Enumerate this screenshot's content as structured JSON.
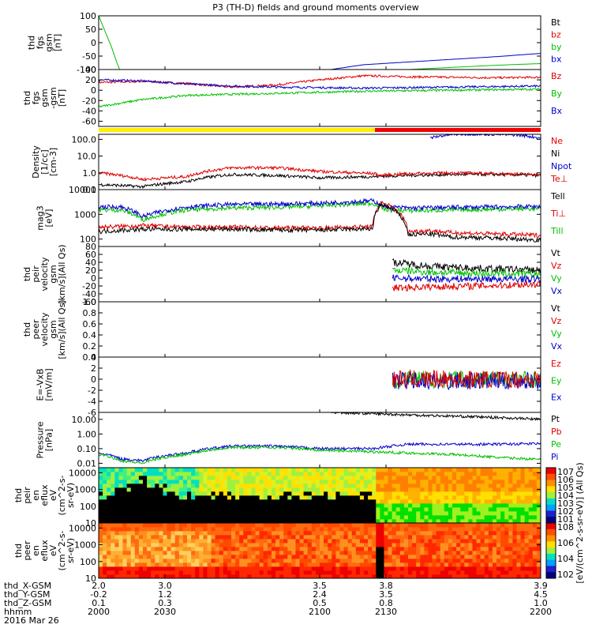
{
  "title": "P3 (TH-D) fields and ground moments overview",
  "footer": {
    "row_labels": [
      "thd_X-GSM",
      "thd_Y-GSM",
      "thd_Z-GSM",
      "hhmm",
      "2016 Mar 26"
    ],
    "x_ticks": [
      [
        "2.0",
        "3.0",
        "3.5",
        "3.8",
        "3.9"
      ],
      [
        "-0.2",
        "1.2",
        "2.4",
        "3.5",
        "4.5"
      ],
      [
        "0.1",
        "0.3",
        "0.5",
        "0.8",
        "1.0"
      ],
      [
        "2000",
        "2030",
        "2100",
        "2130",
        "2200"
      ]
    ]
  },
  "chart_data": [
    {
      "id": "fgs",
      "type": "line",
      "ylabel": [
        "thd",
        "fgs",
        "gsm",
        "[nT]"
      ],
      "ylim": [
        -100,
        100
      ],
      "yticks": [
        "100",
        "50",
        "0",
        "-50",
        "-100"
      ],
      "legend": [
        {
          "name": "Bt",
          "color": "#000000"
        },
        {
          "name": "bz",
          "color": "#e00000"
        },
        {
          "name": "by",
          "color": "#00c000"
        },
        {
          "name": "bx",
          "color": "#0000cc"
        }
      ],
      "series": [
        {
          "name": "by",
          "color": "#00c000",
          "x": [
            2000,
            2003,
            2006,
            2008,
            2009.5
          ],
          "y": [
            100,
            40,
            -20,
            -70,
            -100
          ]
        },
        {
          "name": "bx",
          "color": "#0000cc",
          "x": [
            2105,
            2120,
            2140,
            2160,
            2180,
            2200
          ],
          "y": [
            -100,
            -82,
            -72,
            -62,
            -52,
            -40
          ]
        },
        {
          "name": "by2",
          "color": "#00c000",
          "x": [
            2140,
            2160,
            2180,
            2200
          ],
          "y": [
            -100,
            -92,
            -84,
            -78
          ]
        }
      ]
    },
    {
      "id": "fgs_low",
      "type": "line",
      "ylabel": [
        "thd",
        "fgs",
        "gsm",
        "-gsm",
        "[nT]"
      ],
      "ylim": [
        -70,
        40
      ],
      "yticks": [
        "40",
        "20",
        "0",
        "-20",
        "-40",
        "-60"
      ],
      "legend": [
        {
          "name": "Bz",
          "color": "#e00000"
        },
        {
          "name": "By",
          "color": "#00c000"
        },
        {
          "name": "Bx",
          "color": "#0000cc"
        }
      ],
      "series": [
        {
          "name": "Bz",
          "color": "#e00000",
          "x": [
            2000,
            2020,
            2040,
            2060,
            2080,
            2100,
            2120,
            2140,
            2160,
            2180,
            2200
          ],
          "y": [
            15,
            17,
            13,
            6,
            10,
            20,
            28,
            26,
            25,
            24,
            25
          ]
        },
        {
          "name": "Bx",
          "color": "#0000cc",
          "x": [
            2000,
            2020,
            2040,
            2060,
            2080,
            2100,
            2120,
            2140,
            2160,
            2180,
            2200
          ],
          "y": [
            20,
            18,
            12,
            8,
            6,
            5,
            4,
            5,
            6,
            7,
            8
          ]
        },
        {
          "name": "By",
          "color": "#00c000",
          "x": [
            2000,
            2020,
            2040,
            2060,
            2080,
            2100,
            2120,
            2140,
            2160,
            2180,
            2200
          ],
          "y": [
            -32,
            -18,
            -10,
            -8,
            -6,
            -4,
            -2,
            -1,
            0,
            1,
            2
          ]
        }
      ]
    },
    {
      "id": "density",
      "type": "line",
      "scale": "log",
      "ylabel": [
        "Density",
        "[1/cc]",
        "[cm-3]"
      ],
      "ylim": [
        0.1,
        200
      ],
      "yticks": [
        "100.0",
        "10.0",
        "1.0",
        "0.1"
      ],
      "legend": [
        {
          "name": "Ne",
          "color": "#e00000"
        },
        {
          "name": "Ni",
          "color": "#000000"
        },
        {
          "name": "Npot",
          "color": "#0000cc"
        },
        {
          "name": "Te⊥",
          "color": "#e00000"
        }
      ],
      "series": [
        {
          "name": "Ni",
          "color": "#000000",
          "x": [
            2000,
            2020,
            2040,
            2060,
            2080,
            2100,
            2125,
            2140,
            2160,
            2180,
            2200
          ],
          "y": [
            0.2,
            0.15,
            0.3,
            0.8,
            0.7,
            0.5,
            0.6,
            0.7,
            0.8,
            0.8,
            0.7
          ]
        },
        {
          "name": "Ne",
          "color": "#e00000",
          "x": [
            2000,
            2020,
            2040,
            2060,
            2080,
            2100,
            2125,
            2127,
            2140,
            2160,
            2180,
            2200
          ],
          "y": [
            1.0,
            0.4,
            0.6,
            2.0,
            2.0,
            1.2,
            0.9,
            0.7,
            0.9,
            1.0,
            0.9,
            0.8
          ]
        },
        {
          "name": "Npot",
          "color": "#0000cc",
          "x": [
            2150,
            2160,
            2170,
            2180,
            2190,
            2200
          ],
          "y": [
            120,
            200,
            210,
            200,
            180,
            120
          ]
        }
      ]
    },
    {
      "id": "temperature",
      "type": "line",
      "scale": "log",
      "ylabel": [
        "mag3",
        "[eV]"
      ],
      "ylim": [
        50,
        10000
      ],
      "yticks": [
        "10000",
        "1000",
        "100"
      ],
      "legend": [
        {
          "name": "Tell",
          "color": "#000000"
        },
        {
          "name": "Ti⊥",
          "color": "#e00000"
        },
        {
          "name": "Till",
          "color": "#00c000"
        }
      ],
      "series": [
        {
          "name": "Till",
          "color": "#00c000",
          "x": [
            2000,
            2010,
            2020,
            2040,
            2060,
            2080,
            2100,
            2124,
            2130,
            2140,
            2160,
            2180,
            2200
          ],
          "y": [
            1500,
            1500,
            600,
            1500,
            1800,
            1900,
            2200,
            2800,
            1500,
            1400,
            1500,
            1600,
            1700
          ]
        },
        {
          "name": "Ti_perp",
          "color": "#0000cc",
          "x": [
            2000,
            2010,
            2020,
            2040,
            2060,
            2080,
            2100,
            2124,
            2130,
            2140,
            2160,
            2180,
            2200
          ],
          "y": [
            2000,
            2000,
            800,
            2000,
            2500,
            2600,
            2800,
            3500,
            2000,
            1800,
            1900,
            2000,
            2100
          ]
        },
        {
          "name": "Te_perp",
          "color": "#e00000",
          "x": [
            2000,
            2020,
            2040,
            2060,
            2080,
            2100,
            2124,
            2128,
            2140,
            2150,
            2160,
            2180,
            2200
          ],
          "y": [
            300,
            350,
            300,
            300,
            280,
            280,
            320,
            3000,
            200,
            220,
            180,
            160,
            140
          ]
        },
        {
          "name": "Tell",
          "color": "#000000",
          "x": [
            2000,
            2020,
            2040,
            2060,
            2080,
            2100,
            2124,
            2128,
            2140,
            2150,
            2160,
            2180,
            2200
          ],
          "y": [
            200,
            250,
            250,
            250,
            230,
            230,
            260,
            2500,
            150,
            160,
            120,
            110,
            90
          ]
        }
      ]
    },
    {
      "id": "peir_velocity",
      "type": "line",
      "ylabel": [
        "thd",
        "peir",
        "velocity",
        "gsm",
        "[km/s](All Qs)"
      ],
      "ylim": [
        -60,
        80
      ],
      "yticks": [
        "80",
        "60",
        "40",
        "20",
        "0",
        "-20",
        "-40",
        "-60"
      ],
      "legend": [
        {
          "name": "Vt",
          "color": "#000000"
        },
        {
          "name": "Vz",
          "color": "#e00000"
        },
        {
          "name": "Vy",
          "color": "#00c000"
        },
        {
          "name": "Vx",
          "color": "#0000cc"
        }
      ],
      "series": [
        {
          "name": "Vt",
          "color": "#000000",
          "x": [
            2133,
            2150,
            2170,
            2200
          ],
          "y": [
            40,
            30,
            25,
            20
          ]
        },
        {
          "name": "Vy",
          "color": "#00c000",
          "x": [
            2133,
            2150,
            2170,
            2200
          ],
          "y": [
            20,
            15,
            12,
            10
          ]
        },
        {
          "name": "Vx",
          "color": "#0000cc",
          "x": [
            2133,
            2150,
            2170,
            2200
          ],
          "y": [
            0,
            -2,
            -2,
            -3
          ]
        },
        {
          "name": "Vz",
          "color": "#e00000",
          "x": [
            2133,
            2150,
            2170,
            2200
          ],
          "y": [
            -25,
            -22,
            -20,
            -15
          ]
        }
      ]
    },
    {
      "id": "peer_velocity",
      "type": "line",
      "ylabel": [
        "thd",
        "peer",
        "velocity",
        "gsm",
        "[km/s](All Qs)"
      ],
      "ylim": [
        0,
        1
      ],
      "yticks": [
        "1.0",
        "0.8",
        "0.6",
        "0.4",
        "0.2",
        "0.0"
      ],
      "legend": [
        {
          "name": "Vt",
          "color": "#000000"
        },
        {
          "name": "Vz",
          "color": "#e00000"
        },
        {
          "name": "Vy",
          "color": "#00c000"
        },
        {
          "name": "Vx",
          "color": "#0000cc"
        }
      ],
      "series": []
    },
    {
      "id": "efield",
      "type": "line",
      "ylabel": [
        "E=-VxB",
        "[mV/m]"
      ],
      "ylim": [
        -6,
        4
      ],
      "yticks": [
        "4",
        "2",
        "0",
        "-2",
        "-4",
        "-6"
      ],
      "legend": [
        {
          "name": "Ez",
          "color": "#e00000"
        },
        {
          "name": "Ey",
          "color": "#00c000"
        },
        {
          "name": "Ex",
          "color": "#0000cc"
        }
      ],
      "series": [
        {
          "name": "Ey",
          "color": "#00c000",
          "x": [
            2133,
            2200
          ],
          "y": [
            0,
            0
          ]
        },
        {
          "name": "Ex",
          "color": "#0000cc",
          "x": [
            2133,
            2200
          ],
          "y": [
            -0.3,
            -0.3
          ]
        },
        {
          "name": "Ez",
          "color": "#e00000",
          "x": [
            2133,
            2200
          ],
          "y": [
            0,
            0
          ]
        }
      ]
    },
    {
      "id": "pressure",
      "type": "line",
      "scale": "log",
      "ylabel": [
        "Pressure",
        "[nPa]"
      ],
      "ylim": [
        0.005,
        30
      ],
      "yticks": [
        "10.00",
        "1.00",
        "0.10",
        "0.01"
      ],
      "legend": [
        {
          "name": "Pt",
          "color": "#000000"
        },
        {
          "name": "Pb",
          "color": "#e00000"
        },
        {
          "name": "Pe",
          "color": "#00c000"
        },
        {
          "name": "Pi",
          "color": "#0000cc"
        }
      ],
      "series": [
        {
          "name": "Pt",
          "color": "#000000",
          "x": [
            2105,
            2140,
            2170,
            2200
          ],
          "y": [
            30,
            20,
            15,
            10
          ]
        },
        {
          "name": "Pi",
          "color": "#0000cc",
          "x": [
            2000,
            2010,
            2020,
            2040,
            2060,
            2080,
            2100,
            2125,
            2140,
            2160,
            2180,
            2200
          ],
          "y": [
            0.05,
            0.02,
            0.015,
            0.05,
            0.15,
            0.15,
            0.1,
            0.1,
            0.2,
            0.2,
            0.2,
            0.22
          ]
        },
        {
          "name": "Pe",
          "color": "#00c000",
          "x": [
            2000,
            2010,
            2020,
            2040,
            2060,
            2080,
            2100,
            2125,
            2140,
            2160,
            2180,
            2200
          ],
          "y": [
            0.04,
            0.015,
            0.01,
            0.04,
            0.12,
            0.12,
            0.08,
            0.06,
            0.05,
            0.04,
            0.025,
            0.018
          ]
        }
      ]
    },
    {
      "id": "peir_spectrogram",
      "type": "heatmap",
      "ylabel": [
        "thd",
        "peir",
        "en",
        "eflux",
        "eV",
        "(cm^2-s-",
        "sr-eV)"
      ],
      "ylim": [
        10,
        20000
      ],
      "yticks": [
        "10000",
        "1000",
        "100",
        "10"
      ],
      "colorbar": {
        "label": "[eV/(cm^2-s-sr-eV)] (All Qs)",
        "ticks": [
          "10^7",
          "10^6",
          "10^5",
          "10^4",
          "10^3",
          "10^2",
          "10^1"
        ]
      }
    },
    {
      "id": "peer_spectrogram",
      "type": "heatmap",
      "ylabel": [
        "thd",
        "peer",
        "en",
        "eflux",
        "eV",
        "(cm^2-s-",
        "sr-eV)"
      ],
      "ylim": [
        10,
        20000
      ],
      "yticks": [
        "10000",
        "1000",
        "100",
        "10"
      ],
      "colorbar": {
        "label": "[eV/(cm^2-s-sr-eV)] (All Qs)",
        "ticks": [
          "10^8",
          "10^6",
          "10^4",
          "10^2"
        ]
      }
    }
  ]
}
